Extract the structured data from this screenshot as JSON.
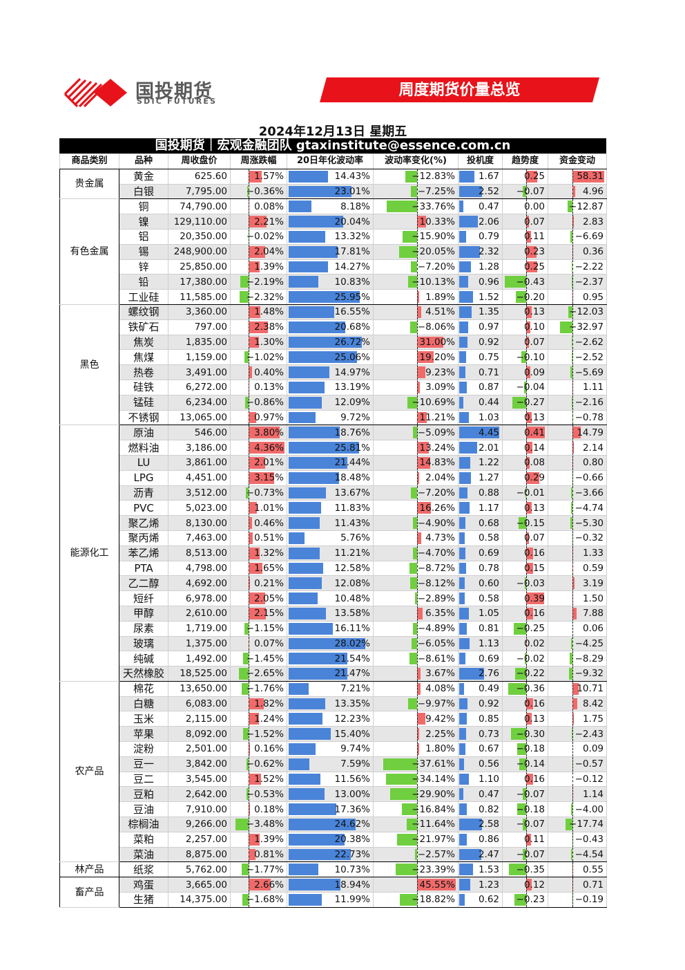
{
  "header": {
    "logo_cn": "国投期货",
    "logo_en": "SDIC FUTURES",
    "banner_title": "周度期货价量总览",
    "date": "2024年12月13日 星期五",
    "team_strip": "国投期货｜宏观金融团队 gtaxinstitute@essence.com.cn"
  },
  "colors": {
    "positive": "#f06a6a",
    "negative": "#6fcf3f",
    "bar": "#4a84d9",
    "banner": "#e8131a"
  },
  "table": {
    "columns": [
      "商品类别",
      "品种",
      "周收盘价",
      "周涨跌幅",
      "20日年化波动率",
      "波动率变化(%)",
      "投机度",
      "趋势度",
      "资金变动"
    ],
    "groups": [
      {
        "category": "贵金属",
        "rows": [
          [
            "黄金",
            "625.60",
            "1.57%",
            "14.43%",
            "-12.83%",
            "1.67",
            "0.25",
            "58.31"
          ],
          [
            "白银",
            "7,795.00",
            "-0.36%",
            "23.01%",
            "-7.25%",
            "2.52",
            "-0.07",
            "4.96"
          ]
        ]
      },
      {
        "category": "有色金属",
        "rows": [
          [
            "铜",
            "74,790.00",
            "0.08%",
            "8.18%",
            "-33.76%",
            "0.47",
            "0.00",
            "-12.87"
          ],
          [
            "镍",
            "129,110.00",
            "2.21%",
            "20.04%",
            "10.33%",
            "2.06",
            "0.07",
            "2.83"
          ],
          [
            "铝",
            "20,350.00",
            "-0.02%",
            "13.32%",
            "-15.90%",
            "0.79",
            "0.11",
            "-6.69"
          ],
          [
            "锡",
            "248,900.00",
            "2.04%",
            "17.81%",
            "-20.05%",
            "2.32",
            "0.23",
            "0.36"
          ],
          [
            "锌",
            "25,850.00",
            "1.39%",
            "14.27%",
            "-7.20%",
            "1.28",
            "0.25",
            "-2.22"
          ],
          [
            "铅",
            "17,380.00",
            "-2.19%",
            "10.83%",
            "-10.13%",
            "0.96",
            "-0.43",
            "-2.37"
          ],
          [
            "工业硅",
            "11,585.00",
            "-2.32%",
            "25.95%",
            "1.89%",
            "1.52",
            "-0.20",
            "0.95"
          ]
        ]
      },
      {
        "category": "黑色",
        "rows": [
          [
            "螺纹钢",
            "3,360.00",
            "1.48%",
            "16.55%",
            "4.51%",
            "1.35",
            "0.13",
            "-12.03"
          ],
          [
            "铁矿石",
            "797.00",
            "2.38%",
            "20.68%",
            "-8.06%",
            "0.97",
            "0.10",
            "-32.97"
          ],
          [
            "焦炭",
            "1,835.00",
            "1.30%",
            "26.72%",
            "31.00%",
            "0.92",
            "0.07",
            "-2.62"
          ],
          [
            "焦煤",
            "1,159.00",
            "-1.02%",
            "25.06%",
            "19.20%",
            "0.75",
            "-0.10",
            "-2.52"
          ],
          [
            "热卷",
            "3,491.00",
            "0.40%",
            "14.97%",
            "9.23%",
            "0.71",
            "0.09",
            "-5.69"
          ],
          [
            "硅铁",
            "6,272.00",
            "0.13%",
            "13.19%",
            "3.09%",
            "0.87",
            "-0.04",
            "1.11"
          ],
          [
            "锰硅",
            "6,234.00",
            "-0.86%",
            "12.09%",
            "-10.69%",
            "0.44",
            "-0.27",
            "-2.16"
          ],
          [
            "不锈钢",
            "13,065.00",
            "0.97%",
            "9.72%",
            "11.21%",
            "1.03",
            "0.13",
            "-0.78"
          ]
        ]
      },
      {
        "category": "能源化工",
        "rows": [
          [
            "原油",
            "546.00",
            "3.80%",
            "18.76%",
            "-5.09%",
            "4.45",
            "0.41",
            "14.79"
          ],
          [
            "燃料油",
            "3,186.00",
            "4.36%",
            "25.81%",
            "13.24%",
            "2.01",
            "0.14",
            "2.14"
          ],
          [
            "LU",
            "3,861.00",
            "2.01%",
            "21.44%",
            "14.83%",
            "1.22",
            "0.08",
            "0.80"
          ],
          [
            "LPG",
            "4,451.00",
            "3.15%",
            "18.48%",
            "2.04%",
            "1.27",
            "0.29",
            "-0.66"
          ],
          [
            "沥青",
            "3,512.00",
            "-0.73%",
            "13.67%",
            "-7.20%",
            "0.88",
            "-0.01",
            "-3.66"
          ],
          [
            "PVC",
            "5,023.00",
            "1.01%",
            "11.83%",
            "16.26%",
            "1.17",
            "0.13",
            "-4.74"
          ],
          [
            "聚乙烯",
            "8,130.00",
            "0.46%",
            "11.43%",
            "-4.90%",
            "0.68",
            "-0.15",
            "-5.30"
          ],
          [
            "聚丙烯",
            "7,463.00",
            "0.51%",
            "5.76%",
            "4.73%",
            "0.58",
            "0.07",
            "-0.32"
          ],
          [
            "苯乙烯",
            "8,513.00",
            "1.32%",
            "11.21%",
            "-4.70%",
            "0.69",
            "0.16",
            "1.33"
          ],
          [
            "PTA",
            "4,798.00",
            "1.65%",
            "12.58%",
            "-8.72%",
            "0.78",
            "0.15",
            "0.59"
          ],
          [
            "乙二醇",
            "4,692.00",
            "0.21%",
            "12.08%",
            "-8.12%",
            "0.60",
            "-0.03",
            "3.19"
          ],
          [
            "短纤",
            "6,978.00",
            "2.05%",
            "10.48%",
            "-2.89%",
            "0.58",
            "0.39",
            "1.50"
          ],
          [
            "甲醇",
            "2,610.00",
            "2.15%",
            "13.58%",
            "6.35%",
            "1.05",
            "0.16",
            "7.88"
          ],
          [
            "尿素",
            "1,719.00",
            "-1.15%",
            "16.11%",
            "-4.89%",
            "0.81",
            "-0.25",
            "0.06"
          ],
          [
            "玻璃",
            "1,375.00",
            "0.07%",
            "28.02%",
            "-6.05%",
            "1.13",
            "0.02",
            "-4.25"
          ],
          [
            "纯碱",
            "1,492.00",
            "-1.45%",
            "21.54%",
            "-8.61%",
            "0.69",
            "-0.02",
            "-8.29"
          ],
          [
            "天然橡胶",
            "18,525.00",
            "-2.65%",
            "21.47%",
            "3.67%",
            "2.76",
            "-0.22",
            "-9.32"
          ]
        ]
      },
      {
        "category": "农产品",
        "rows": [
          [
            "棉花",
            "13,650.00",
            "-1.76%",
            "7.21%",
            "4.08%",
            "0.49",
            "-0.36",
            "10.71"
          ],
          [
            "白糖",
            "6,083.00",
            "1.82%",
            "13.35%",
            "-9.97%",
            "0.92",
            "0.16",
            "8.42"
          ],
          [
            "玉米",
            "2,115.00",
            "1.24%",
            "12.23%",
            "9.42%",
            "0.85",
            "0.13",
            "1.75"
          ],
          [
            "苹果",
            "8,092.00",
            "-1.52%",
            "15.40%",
            "2.25%",
            "0.73",
            "-0.30",
            "-2.43"
          ],
          [
            "淀粉",
            "2,501.00",
            "0.16%",
            "9.74%",
            "1.80%",
            "0.67",
            "-0.18",
            "0.09"
          ],
          [
            "豆一",
            "3,842.00",
            "-0.62%",
            "7.59%",
            "-37.61%",
            "0.56",
            "-0.14",
            "-0.57"
          ],
          [
            "豆二",
            "3,545.00",
            "1.52%",
            "11.56%",
            "-34.14%",
            "1.10",
            "0.16",
            "-0.12"
          ],
          [
            "豆粕",
            "2,642.00",
            "-0.53%",
            "13.00%",
            "-29.90%",
            "0.47",
            "-0.07",
            "1.14"
          ],
          [
            "豆油",
            "7,910.00",
            "0.18%",
            "17.36%",
            "-16.84%",
            "0.82",
            "-0.18",
            "-4.00"
          ],
          [
            "棕榈油",
            "9,266.00",
            "-3.48%",
            "24.62%",
            "-11.64%",
            "2.58",
            "-0.07",
            "-17.74"
          ],
          [
            "菜粕",
            "2,257.00",
            "1.39%",
            "20.38%",
            "-21.97%",
            "0.86",
            "0.11",
            "-0.43"
          ],
          [
            "菜油",
            "8,875.00",
            "0.81%",
            "22.73%",
            "-2.57%",
            "2.47",
            "-0.07",
            "-4.54"
          ]
        ]
      },
      {
        "category": "林产品",
        "rows": [
          [
            "纸浆",
            "5,762.00",
            "-1.77%",
            "10.73%",
            "-23.39%",
            "1.53",
            "-0.35",
            "0.55"
          ]
        ]
      },
      {
        "category": "畜产品",
        "rows": [
          [
            "鸡蛋",
            "3,665.00",
            "2.66%",
            "18.94%",
            "45.55%",
            "1.23",
            "0.12",
            "0.71"
          ],
          [
            "生猪",
            "14,375.00",
            "-1.68%",
            "11.99%",
            "-18.82%",
            "0.62",
            "-0.23",
            "-0.19"
          ]
        ]
      }
    ]
  }
}
